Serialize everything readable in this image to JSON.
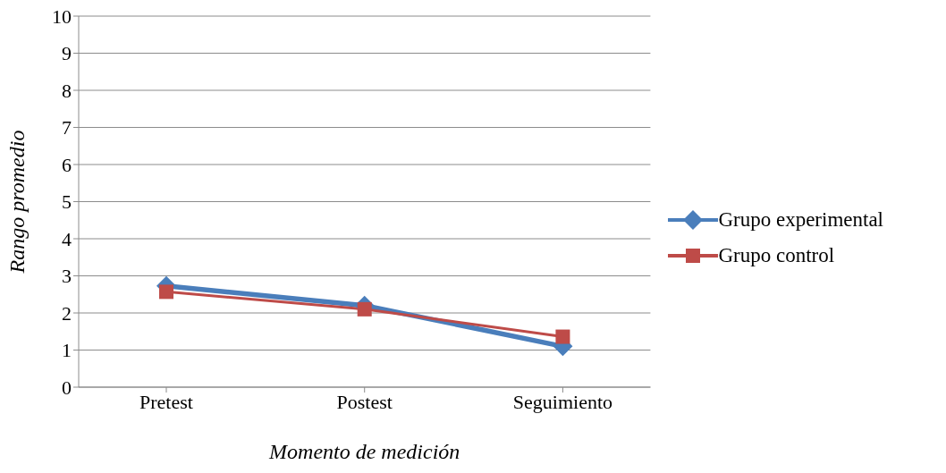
{
  "chart_data": {
    "type": "line",
    "xlabel": "Momento de medición",
    "ylabel": "Rango promedio",
    "categories": [
      "Pretest",
      "Postest",
      "Seguimiento"
    ],
    "series": [
      {
        "name": "Grupo experimental",
        "color": "#4a7ebb",
        "values": [
          2.73,
          2.2,
          1.1
        ],
        "marker": "diamond"
      },
      {
        "name": "Grupo control",
        "color": "#be4b48",
        "values": [
          2.57,
          2.1,
          1.36
        ],
        "marker": "square"
      }
    ],
    "ylim": [
      0,
      10
    ],
    "yticks": [
      0,
      1,
      2,
      3,
      4,
      5,
      6,
      7,
      8,
      9,
      10
    ],
    "grid": "y",
    "legend": "right",
    "line_style": "solid"
  }
}
